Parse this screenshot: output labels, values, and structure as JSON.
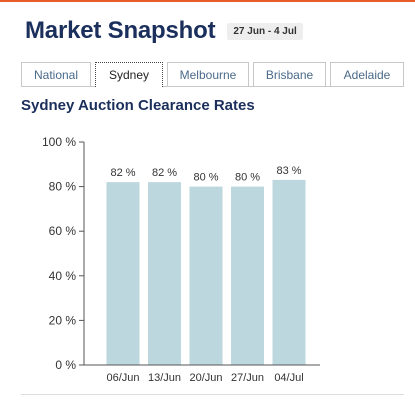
{
  "header": {
    "title": "Market Snapshot",
    "date_range": "27 Jun - 4 Jul"
  },
  "tabs": [
    {
      "label": "National",
      "active": false
    },
    {
      "label": "Sydney",
      "active": true
    },
    {
      "label": "Melbourne",
      "active": false
    },
    {
      "label": "Brisbane",
      "active": false
    },
    {
      "label": "Adelaide",
      "active": false
    }
  ],
  "colors": {
    "accent": "#e85c2a",
    "title": "#1b2f5c",
    "bar": "#bdd7de"
  },
  "chart_data": {
    "type": "bar",
    "title": "Sydney Auction Clearance Rates",
    "categories": [
      "06/Jun",
      "13/Jun",
      "20/Jun",
      "27/Jun",
      "04/Jul"
    ],
    "values": [
      82,
      82,
      80,
      80,
      83
    ],
    "data_labels": [
      "82 %",
      "82 %",
      "80 %",
      "80 %",
      "83 %"
    ],
    "yticks": [
      0,
      20,
      40,
      60,
      80,
      100
    ],
    "ytick_labels": [
      "0 %",
      "20 %",
      "40 %",
      "60 %",
      "80 %",
      "100 %"
    ],
    "ylim": [
      0,
      100
    ],
    "xlabel": "",
    "ylabel": "",
    "grid": false,
    "legend": "none"
  }
}
